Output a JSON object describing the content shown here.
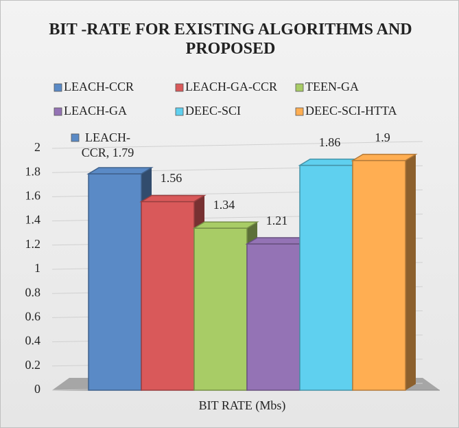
{
  "chart_data": {
    "type": "bar3d",
    "title": "BIT -RATE FOR EXISTING ALGORITHMS AND PROPOSED",
    "categories": [
      "BIT RATE (Mbs)"
    ],
    "series": [
      {
        "name": "LEACH-CCR",
        "color": "#5a8ac6",
        "values": [
          1.79
        ],
        "value_labels": [
          "LEACH-CCR, 1.79"
        ]
      },
      {
        "name": "LEACH-GA-CCR",
        "color": "#d9595a",
        "values": [
          1.56
        ]
      },
      {
        "name": "TEEN-GA",
        "color": "#a8cc66",
        "values": [
          1.34
        ]
      },
      {
        "name": "LEACH-GA",
        "color": "#9473b5",
        "values": [
          1.21
        ]
      },
      {
        "name": "DEEC-SCI",
        "color": "#5fd0ef",
        "values": [
          1.86
        ]
      },
      {
        "name": "DEEC-SCI-HTTA",
        "color": "#ffae52",
        "values": [
          1.9
        ]
      }
    ],
    "ylim": [
      0,
      2
    ],
    "yticks": [
      0,
      0.2,
      0.4,
      0.6,
      0.8,
      1,
      1.2,
      1.4,
      1.6,
      1.8,
      2
    ],
    "grid": true,
    "legend": "top"
  }
}
